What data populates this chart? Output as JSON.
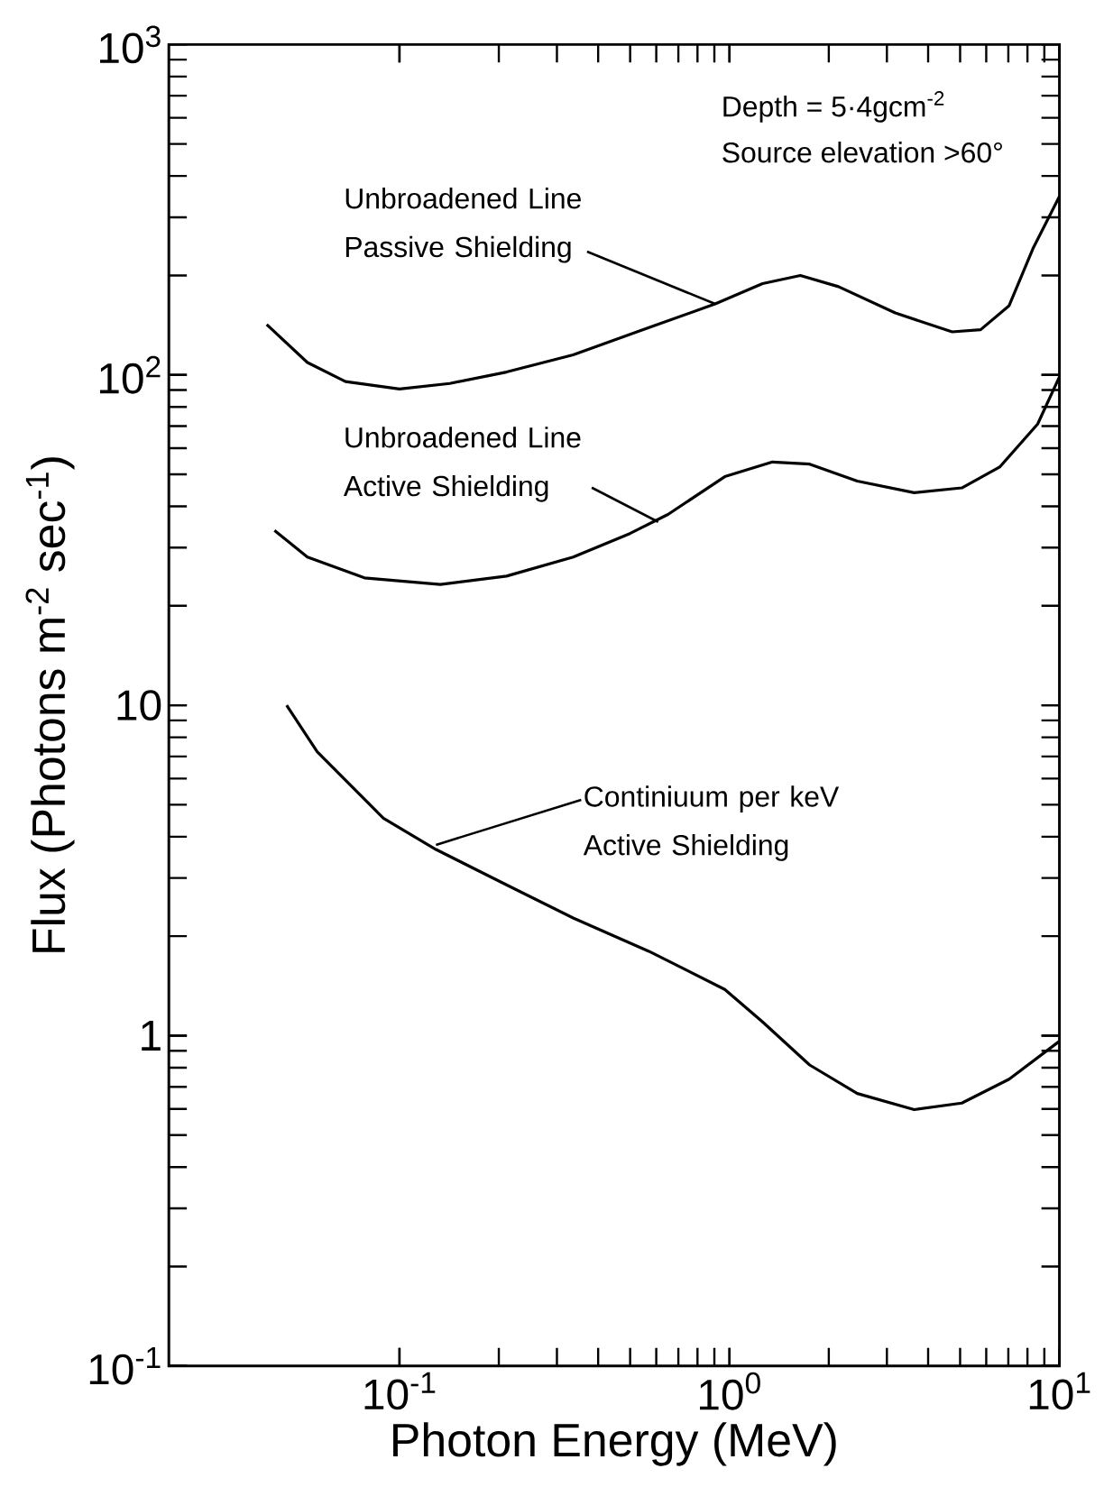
{
  "chart_data": {
    "type": "line",
    "xlabel": "Photon Energy (MeV)",
    "ylabel": "Flux (Photons m$^{-2}$ sec$^{-1}$)",
    "log": "xy",
    "xlim": [
      0.02,
      10
    ],
    "ylim": [
      0.1,
      1000
    ],
    "xticks": [
      {
        "value": 0.1,
        "label": "10$^{-1}$"
      },
      {
        "value": 1,
        "label": "10$^{0}$"
      },
      {
        "value": 10,
        "label": "10$^{1}$"
      }
    ],
    "yticks": [
      {
        "value": 0.1,
        "label": "10$^{-1}$"
      },
      1,
      10,
      {
        "value": 100,
        "label": "10$^{2}$"
      },
      {
        "value": 1000,
        "label": "10$^{3}$"
      }
    ],
    "series": [
      {
        "color": "#000000",
        "x": [
          0.0396,
          0.0526,
          0.0686,
          0.1,
          0.142,
          0.211,
          0.336,
          0.57,
          0.905,
          1.26,
          1.64,
          2.14,
          3.18,
          4.73,
          5.77,
          7.04,
          8.31,
          10
        ],
        "values": [
          142,
          109,
          95.5,
          90.6,
          94.2,
          102,
          115,
          139,
          164,
          189,
          200,
          185,
          154,
          135,
          137,
          162,
          241,
          347
        ]
      },
      {
        "color": "#000000",
        "x": [
          0.0418,
          0.0526,
          0.0783,
          0.133,
          0.211,
          0.336,
          0.499,
          0.651,
          0.968,
          1.35,
          1.75,
          2.44,
          3.63,
          5.06,
          6.59,
          8.59,
          10
        ],
        "values": [
          33.8,
          28.1,
          24.3,
          23.2,
          24.6,
          28.1,
          33.1,
          37.8,
          49.2,
          54.5,
          53.7,
          47.7,
          44.0,
          45.5,
          52.6,
          71,
          98.7
        ]
      },
      {
        "color": "#000000",
        "x": [
          0.0455,
          0.0563,
          0.0686,
          0.0894,
          0.129,
          0.211,
          0.336,
          0.57,
          0.968,
          1.26,
          1.75,
          2.44,
          3.63,
          5.06,
          7.04,
          10
        ],
        "values": [
          10.0,
          7.23,
          5.93,
          4.55,
          3.66,
          2.86,
          2.27,
          1.8,
          1.38,
          1.1,
          0.815,
          0.668,
          0.597,
          0.625,
          0.738,
          0.962
        ]
      }
    ],
    "annotations": [
      "Depth = 5·4gcm$^{-2}$",
      "Source elevation >60°",
      {
        "text": "Unbroadened Line Passive Shielding",
        "x": 0.905,
        "y": 164
      },
      {
        "text": "Unbroadened Line Active Shielding",
        "x": 0.608,
        "y": 35.9
      },
      {
        "text": "Continiuum per keV Active Shielding",
        "x": 0.129,
        "y": 3.78
      }
    ]
  }
}
